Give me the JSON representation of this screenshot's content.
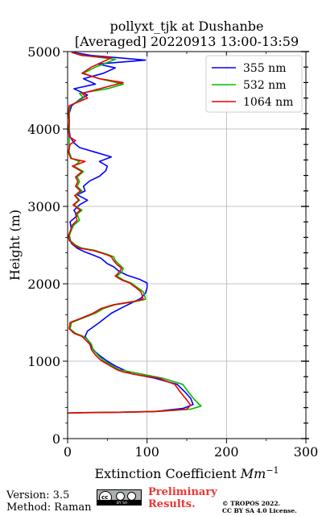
{
  "chart_data": {
    "type": "line",
    "title": "pollyxt_tjk at Dushanbe",
    "subtitle": "[Averaged] 20220913 13:00-13:59",
    "xlabel_main": "Extinction Coefficient ",
    "xlabel_unit_base": "Mm",
    "xlabel_unit_exp": "−1",
    "ylabel": "Height (m)",
    "xlim": [
      0,
      300
    ],
    "ylim": [
      0,
      5000
    ],
    "x_ticks": [
      "0",
      "100",
      "200",
      "300"
    ],
    "y_ticks": [
      "0",
      "1000",
      "2000",
      "3000",
      "4000",
      "5000"
    ],
    "x_tick_values": [
      0,
      100,
      200,
      300
    ],
    "y_tick_values": [
      0,
      1000,
      2000,
      3000,
      4000,
      5000
    ],
    "grid": true,
    "legend_position": "top-right",
    "series": [
      {
        "name": "355 nm",
        "color": "#0000ff",
        "points": [
          [
            0,
            330
          ],
          [
            20,
            335
          ],
          [
            60,
            340
          ],
          [
            110,
            350
          ],
          [
            145,
            390
          ],
          [
            158,
            440
          ],
          [
            155,
            520
          ],
          [
            148,
            600
          ],
          [
            138,
            700
          ],
          [
            110,
            780
          ],
          [
            80,
            840
          ],
          [
            70,
            890
          ],
          [
            60,
            940
          ],
          [
            50,
            1000
          ],
          [
            42,
            1060
          ],
          [
            35,
            1120
          ],
          [
            30,
            1180
          ],
          [
            28,
            1240
          ],
          [
            22,
            1320
          ],
          [
            25,
            1390
          ],
          [
            40,
            1500
          ],
          [
            55,
            1620
          ],
          [
            70,
            1700
          ],
          [
            82,
            1760
          ],
          [
            92,
            1810
          ],
          [
            98,
            1880
          ],
          [
            100,
            1950
          ],
          [
            100,
            2010
          ],
          [
            90,
            2060
          ],
          [
            75,
            2110
          ],
          [
            65,
            2160
          ],
          [
            58,
            2220
          ],
          [
            50,
            2260
          ],
          [
            42,
            2330
          ],
          [
            30,
            2380
          ],
          [
            20,
            2420
          ],
          [
            12,
            2460
          ],
          [
            5,
            2520
          ],
          [
            3,
            2580
          ],
          [
            2,
            2640
          ],
          [
            5,
            2700
          ],
          [
            3,
            2800
          ],
          [
            12,
            2880
          ],
          [
            8,
            2950
          ],
          [
            15,
            3020
          ],
          [
            25,
            3080
          ],
          [
            12,
            3150
          ],
          [
            22,
            3200
          ],
          [
            20,
            3260
          ],
          [
            28,
            3330
          ],
          [
            40,
            3390
          ],
          [
            48,
            3460
          ],
          [
            50,
            3520
          ],
          [
            40,
            3580
          ],
          [
            55,
            3640
          ],
          [
            35,
            3700
          ],
          [
            15,
            3760
          ],
          [
            8,
            3820
          ],
          [
            3,
            3900
          ],
          [
            2,
            4000
          ],
          [
            2,
            4100
          ],
          [
            2,
            4200
          ],
          [
            5,
            4300
          ],
          [
            15,
            4380
          ],
          [
            25,
            4440
          ],
          [
            8,
            4520
          ],
          [
            35,
            4580
          ],
          [
            20,
            4650
          ],
          [
            45,
            4720
          ],
          [
            60,
            4790
          ],
          [
            38,
            4840
          ],
          [
            98,
            4890
          ],
          [
            30,
            4950
          ],
          [
            8,
            4990
          ]
        ]
      },
      {
        "name": "532 nm",
        "color": "#00bb00",
        "points": [
          [
            0,
            330
          ],
          [
            20,
            335
          ],
          [
            60,
            340
          ],
          [
            120,
            355
          ],
          [
            155,
            380
          ],
          [
            168,
            420
          ],
          [
            160,
            500
          ],
          [
            152,
            600
          ],
          [
            145,
            700
          ],
          [
            120,
            780
          ],
          [
            100,
            820
          ],
          [
            80,
            860
          ],
          [
            65,
            890
          ],
          [
            55,
            950
          ],
          [
            45,
            1010
          ],
          [
            38,
            1080
          ],
          [
            32,
            1150
          ],
          [
            30,
            1220
          ],
          [
            25,
            1280
          ],
          [
            20,
            1320
          ],
          [
            10,
            1360
          ],
          [
            3,
            1420
          ],
          [
            5,
            1500
          ],
          [
            20,
            1560
          ],
          [
            35,
            1620
          ],
          [
            45,
            1680
          ],
          [
            60,
            1730
          ],
          [
            85,
            1770
          ],
          [
            98,
            1800
          ],
          [
            97,
            1850
          ],
          [
            95,
            1900
          ],
          [
            88,
            1950
          ],
          [
            80,
            2010
          ],
          [
            70,
            2050
          ],
          [
            62,
            2100
          ],
          [
            68,
            2150
          ],
          [
            70,
            2200
          ],
          [
            65,
            2250
          ],
          [
            60,
            2300
          ],
          [
            58,
            2350
          ],
          [
            50,
            2380
          ],
          [
            35,
            2430
          ],
          [
            18,
            2460
          ],
          [
            10,
            2500
          ],
          [
            3,
            2560
          ],
          [
            2,
            2620
          ],
          [
            5,
            2700
          ],
          [
            8,
            2760
          ],
          [
            15,
            2820
          ],
          [
            12,
            2900
          ],
          [
            18,
            2950
          ],
          [
            8,
            3020
          ],
          [
            15,
            3080
          ],
          [
            10,
            3140
          ],
          [
            18,
            3200
          ],
          [
            12,
            3260
          ],
          [
            15,
            3320
          ],
          [
            12,
            3380
          ],
          [
            20,
            3450
          ],
          [
            8,
            3520
          ],
          [
            15,
            3580
          ],
          [
            5,
            3620
          ],
          [
            2,
            3700
          ],
          [
            2,
            3800
          ],
          [
            2,
            3900
          ],
          [
            2,
            4000
          ],
          [
            2,
            4100
          ],
          [
            2,
            4200
          ],
          [
            3,
            4300
          ],
          [
            20,
            4400
          ],
          [
            15,
            4460
          ],
          [
            50,
            4520
          ],
          [
            70,
            4580
          ],
          [
            40,
            4650
          ],
          [
            20,
            4720
          ],
          [
            35,
            4800
          ],
          [
            60,
            4900
          ],
          [
            20,
            4950
          ],
          [
            5,
            4990
          ]
        ]
      },
      {
        "name": "1064 nm",
        "color": "#ee0000",
        "points": [
          [
            0,
            330
          ],
          [
            20,
            335
          ],
          [
            60,
            340
          ],
          [
            110,
            350
          ],
          [
            150,
            380
          ],
          [
            155,
            430
          ],
          [
            150,
            500
          ],
          [
            142,
            600
          ],
          [
            135,
            700
          ],
          [
            115,
            780
          ],
          [
            90,
            820
          ],
          [
            70,
            860
          ],
          [
            62,
            890
          ],
          [
            52,
            950
          ],
          [
            42,
            1010
          ],
          [
            35,
            1080
          ],
          [
            30,
            1150
          ],
          [
            28,
            1220
          ],
          [
            22,
            1280
          ],
          [
            18,
            1320
          ],
          [
            8,
            1360
          ],
          [
            2,
            1420
          ],
          [
            3,
            1500
          ],
          [
            18,
            1560
          ],
          [
            32,
            1620
          ],
          [
            42,
            1680
          ],
          [
            58,
            1730
          ],
          [
            82,
            1770
          ],
          [
            95,
            1800
          ],
          [
            94,
            1850
          ],
          [
            92,
            1900
          ],
          [
            86,
            1950
          ],
          [
            78,
            2010
          ],
          [
            68,
            2050
          ],
          [
            60,
            2100
          ],
          [
            65,
            2150
          ],
          [
            68,
            2200
          ],
          [
            62,
            2250
          ],
          [
            58,
            2300
          ],
          [
            55,
            2350
          ],
          [
            48,
            2380
          ],
          [
            32,
            2430
          ],
          [
            15,
            2460
          ],
          [
            8,
            2500
          ],
          [
            2,
            2560
          ],
          [
            1,
            2620
          ],
          [
            4,
            2700
          ],
          [
            6,
            2760
          ],
          [
            12,
            2820
          ],
          [
            10,
            2900
          ],
          [
            16,
            2950
          ],
          [
            7,
            3020
          ],
          [
            14,
            3080
          ],
          [
            9,
            3140
          ],
          [
            16,
            3200
          ],
          [
            10,
            3260
          ],
          [
            13,
            3320
          ],
          [
            10,
            3380
          ],
          [
            18,
            3450
          ],
          [
            6,
            3520
          ],
          [
            22,
            3580
          ],
          [
            4,
            3620
          ],
          [
            1,
            3700
          ],
          [
            3,
            3800
          ],
          [
            10,
            3850
          ],
          [
            2,
            3900
          ],
          [
            1,
            4000
          ],
          [
            2,
            4100
          ],
          [
            1,
            4200
          ],
          [
            2,
            4300
          ],
          [
            25,
            4400
          ],
          [
            18,
            4460
          ],
          [
            40,
            4520
          ],
          [
            70,
            4600
          ],
          [
            40,
            4650
          ],
          [
            18,
            4720
          ],
          [
            30,
            4800
          ],
          [
            55,
            4920
          ],
          [
            18,
            4950
          ],
          [
            5,
            4990
          ]
        ]
      }
    ]
  },
  "footer": {
    "version": "Version: 3.5",
    "method": "Method: Raman",
    "preliminary_line1": "Preliminary",
    "preliminary_line2": "Results.",
    "preliminary_color": "#ee3333",
    "copyright_line1": "© TROPOS 2022.",
    "copyright_line2": "CC BY SA 4.0 License.",
    "cc_badge_text": "cc",
    "cc_badge_small": "BY   SA"
  }
}
